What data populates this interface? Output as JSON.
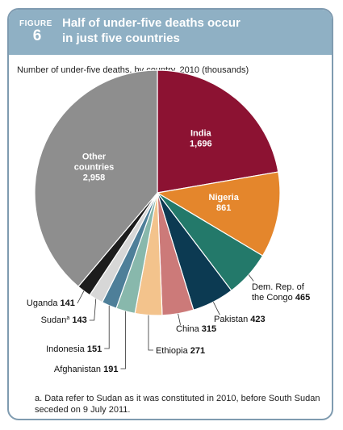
{
  "figure": {
    "label": "FIGURE",
    "number": "6"
  },
  "title_line1": "Half of under-five deaths occur",
  "title_line2": "in just five countries",
  "subtitle": "Number of under-five deaths, by country, 2010 (thousands)",
  "footnote": "a. Data refer to Sudan as it was constituted in 2010, before South Sudan seceded on 9 July 2011.",
  "chart_data": {
    "type": "pie",
    "title": "Half of under-five deaths occur in just five countries",
    "unit": "thousands",
    "slices": [
      {
        "name": "India",
        "value": 1696,
        "color": "#8c1232",
        "label_inside": true
      },
      {
        "name": "Nigeria",
        "value": 861,
        "color": "#e4862c",
        "label_inside": true
      },
      {
        "name": "Dem. Rep. of the Congo",
        "value": 465,
        "color": "#23796a",
        "label_inside": false
      },
      {
        "name": "Pakistan",
        "value": 423,
        "color": "#0c3a52",
        "label_inside": false
      },
      {
        "name": "China",
        "value": 315,
        "color": "#cc7a79",
        "label_inside": false
      },
      {
        "name": "Ethiopia",
        "value": 271,
        "color": "#f3c38c",
        "label_inside": false
      },
      {
        "name": "Afghanistan",
        "value": 191,
        "color": "#88b8ac",
        "label_inside": false
      },
      {
        "name": "Indonesia",
        "value": 151,
        "color": "#4e7f99",
        "label_inside": false
      },
      {
        "name": "Sudan",
        "name_superscript": "a",
        "value": 143,
        "color": "#d7d7d7",
        "label_inside": false
      },
      {
        "name": "Uganda",
        "value": 141,
        "color": "#1c1c1c",
        "label_inside": false
      },
      {
        "name": "Other countries",
        "value": 2958,
        "color": "#8e8e8e",
        "label_inside": true
      }
    ]
  }
}
